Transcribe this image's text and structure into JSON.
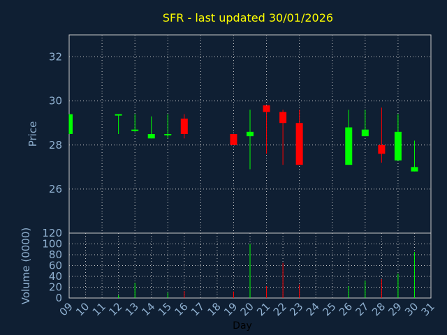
{
  "chart_data": {
    "type": "candlestick",
    "title": "SFR - last updated 30/01/2026",
    "xlabel": "Day",
    "price_ylabel": "Price",
    "volume_ylabel": "Volume (0000)",
    "x_tick_labels": [
      "09",
      "10",
      "11",
      "12",
      "13",
      "14",
      "15",
      "16",
      "17",
      "18",
      "19",
      "20",
      "21",
      "22",
      "23",
      "24",
      "25",
      "26",
      "27",
      "28",
      "29",
      "30",
      "31"
    ],
    "price_ticks": [
      "26",
      "28",
      "30",
      "32"
    ],
    "volume_ticks": [
      "0",
      "20",
      "40",
      "60",
      "80",
      "100",
      "120"
    ],
    "price_ylim": [
      24.0,
      33.0
    ],
    "volume_ylim": [
      0,
      120
    ],
    "grid": true,
    "colors": {
      "up": "#00ff00",
      "down": "#ff0000",
      "title": "#ffff00",
      "axis_text": "#8fb0d0",
      "background": "#0f1f33",
      "grid": "#c8c8c8"
    },
    "candles": [
      {
        "day": "09",
        "open": 28.5,
        "high": 29.4,
        "low": 28.5,
        "close": 29.4,
        "volume": 0
      },
      {
        "day": "12",
        "open": 29.4,
        "high": 29.4,
        "low": 28.5,
        "close": 29.4,
        "volume": 5
      },
      {
        "day": "13",
        "open": 28.7,
        "high": 29.4,
        "low": 28.6,
        "close": 28.7,
        "volume": 28
      },
      {
        "day": "14",
        "open": 28.3,
        "high": 29.3,
        "low": 28.3,
        "close": 28.5,
        "volume": 0
      },
      {
        "day": "15",
        "open": 28.5,
        "high": 29.4,
        "low": 28.3,
        "close": 28.5,
        "volume": 10
      },
      {
        "day": "16",
        "open": 29.2,
        "high": 29.4,
        "low": 28.3,
        "close": 28.5,
        "volume": 13
      },
      {
        "day": "19",
        "open": 28.5,
        "high": 28.5,
        "low": 28.0,
        "close": 28.0,
        "volume": 12
      },
      {
        "day": "20",
        "open": 28.4,
        "high": 29.6,
        "low": 26.9,
        "close": 28.6,
        "volume": 100
      },
      {
        "day": "21",
        "open": 29.8,
        "high": 29.8,
        "low": 27.6,
        "close": 29.5,
        "volume": 22
      },
      {
        "day": "22",
        "open": 29.5,
        "high": 29.6,
        "low": 27.1,
        "close": 29.0,
        "volume": 65
      },
      {
        "day": "23",
        "open": 29.0,
        "high": 29.6,
        "low": 27.1,
        "close": 27.1,
        "volume": 25
      },
      {
        "day": "26",
        "open": 27.1,
        "high": 29.6,
        "low": 27.1,
        "close": 28.8,
        "volume": 22
      },
      {
        "day": "27",
        "open": 28.4,
        "high": 29.6,
        "low": 28.4,
        "close": 28.7,
        "volume": 32
      },
      {
        "day": "28",
        "open": 28.0,
        "high": 29.7,
        "low": 27.2,
        "close": 27.6,
        "volume": 35
      },
      {
        "day": "29",
        "open": 27.3,
        "high": 29.4,
        "low": 27.3,
        "close": 28.6,
        "volume": 45
      },
      {
        "day": "30",
        "open": 26.8,
        "high": 28.2,
        "low": 26.8,
        "close": 27.0,
        "volume": 85
      }
    ]
  }
}
